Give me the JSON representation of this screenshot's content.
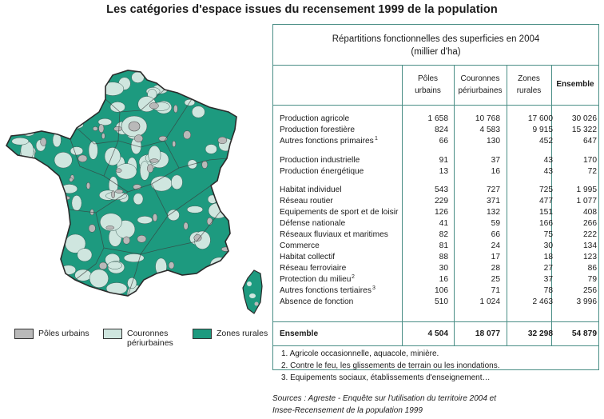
{
  "title": "Les catégories d'espace issues du recensement 1999 de la population",
  "colors": {
    "poles_urbains": "#b9b9b9",
    "couronnes": "#cfe6df",
    "zones_rurales": "#1d9a7f",
    "border": "#4a8e86"
  },
  "legend": [
    {
      "label": "Pôles urbains",
      "color": "#b9b9b9"
    },
    {
      "label": "Couronnes\npériurbaines",
      "color": "#cfe6df"
    },
    {
      "label": "Zones rurales",
      "color": "#1d9a7f"
    }
  ],
  "table": {
    "title_line1": "Répartitions fonctionnelles des superficies en 2004",
    "title_line2": "(millier d'ha)",
    "headers": [
      "Pôles\nurbains",
      "Couronnes\npériurbaines",
      "Zones\nrurales",
      "Ensemble"
    ],
    "rows": [
      {
        "label": "Production agricole",
        "sup": "",
        "values": [
          "1 658",
          "10 768",
          "17 600",
          "30 026"
        ]
      },
      {
        "label": "Production forestière",
        "sup": "",
        "values": [
          "824",
          "4 583",
          "9 915",
          "15 322"
        ]
      },
      {
        "label": "Autres fonctions primaires",
        "sup": "1",
        "values": [
          "66",
          "130",
          "452",
          "647"
        ]
      },
      {
        "label": "Production industrielle",
        "sup": "",
        "values": [
          "91",
          "37",
          "43",
          "170"
        ]
      },
      {
        "label": "Production énergétique",
        "sup": "",
        "values": [
          "13",
          "16",
          "43",
          "72"
        ]
      },
      {
        "label": "Habitat individuel",
        "sup": "",
        "values": [
          "543",
          "727",
          "725",
          "1 995"
        ]
      },
      {
        "label": "Réseau routier",
        "sup": "",
        "values": [
          "229",
          "371",
          "477",
          "1 077"
        ]
      },
      {
        "label": "Equipements de sport et de loisir",
        "sup": "",
        "values": [
          "126",
          "132",
          "151",
          "408"
        ]
      },
      {
        "label": "Défense nationale",
        "sup": "",
        "values": [
          "41",
          "59",
          "166",
          "266"
        ]
      },
      {
        "label": "Réseaux fluviaux et maritimes",
        "sup": "",
        "values": [
          "82",
          "66",
          "75",
          "222"
        ]
      },
      {
        "label": "Commerce",
        "sup": "",
        "values": [
          "81",
          "24",
          "30",
          "134"
        ]
      },
      {
        "label": "Habitat collectif",
        "sup": "",
        "values": [
          "88",
          "17",
          "18",
          "123"
        ]
      },
      {
        "label": "Réseau ferroviaire",
        "sup": "",
        "values": [
          "30",
          "28",
          "27",
          "86"
        ]
      },
      {
        "label": "Protection du milieu",
        "sup": "2",
        "values": [
          "16",
          "25",
          "37",
          "79"
        ]
      },
      {
        "label": "Autres fonctions tertiaires",
        "sup": "3",
        "values": [
          "106",
          "71",
          "78",
          "256"
        ]
      },
      {
        "label": "Absence de fonction",
        "sup": "",
        "values": [
          "510",
          "1 024",
          "2 463",
          "3 996"
        ]
      }
    ],
    "total": {
      "label": "Ensemble",
      "values": [
        "4 504",
        "18 077",
        "32 298",
        "54 879"
      ]
    },
    "notes": [
      "1. Agricole occasionnelle, aquacole, minière.",
      "2. Contre le feu, les glissements de terrain ou les inondations.",
      "3. Equipements sociaux, établissements d'enseignement…"
    ]
  },
  "sources": [
    "Sources : Agreste - Enquête sur l'utilisation du territoire 2004 et",
    "Insee-Recensement de la population 1999"
  ]
}
